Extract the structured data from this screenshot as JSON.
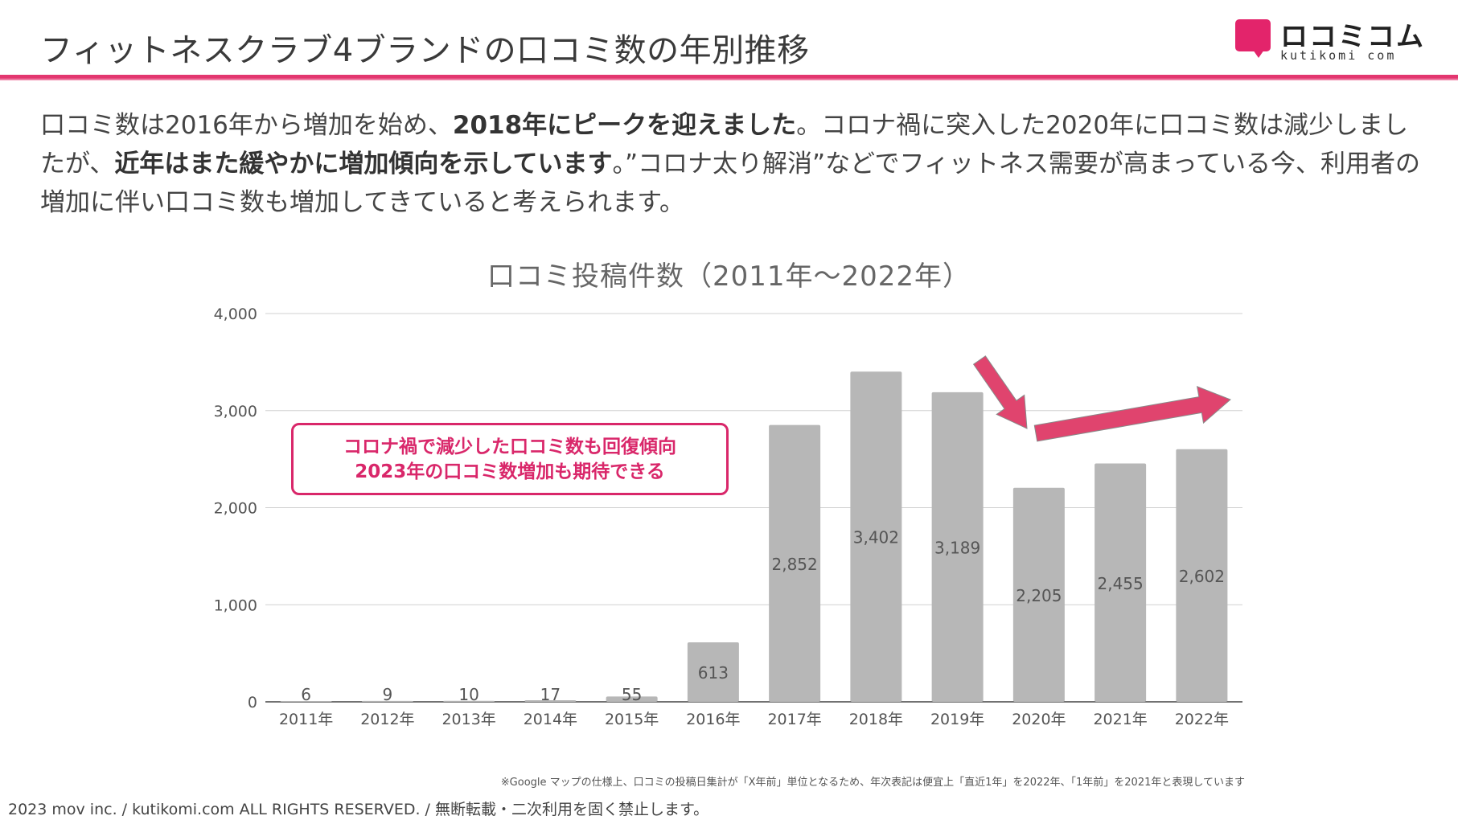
{
  "header": {
    "title": "フィットネスクラブ4ブランドの口コミ数の年別推移",
    "accent_color": "#e3366f"
  },
  "logo": {
    "name_jp": "ロコミコム",
    "name_en": "kutikomi com",
    "mark_color": "#e3246b"
  },
  "summary": {
    "p1": "口コミ数は2016年から増加を始め、",
    "b1": "2018年にピークを迎えました",
    "p2": "。コロナ禍に突入した2020年に口コミ数は減少しましたが、",
    "b2": "近年はまた緩やかに増加傾向を示しています",
    "p3": "。”コロナ太り解消”などでフィットネス需要が高まっている今、利用者の増加に伴い口コミ数も増加してきていると考えられます。"
  },
  "callout": {
    "line1": "コロナ禍で減少した口コミ数も回復傾向",
    "line2": "2023年の口コミ数増加も期待できる",
    "color": "#d9276a"
  },
  "chart_data": {
    "type": "bar",
    "title": "口コミ投稿件数（2011年〜2022年）",
    "categories": [
      "2011年",
      "2012年",
      "2013年",
      "2014年",
      "2015年",
      "2016年",
      "2017年",
      "2018年",
      "2019年",
      "2020年",
      "2021年",
      "2022年"
    ],
    "values": [
      6,
      9,
      10,
      17,
      55,
      613,
      2852,
      3402,
      3189,
      2205,
      2455,
      2602
    ],
    "value_labels": [
      "6",
      "9",
      "10",
      "17",
      "55",
      "613",
      "2,852",
      "3,402",
      "3,189",
      "2,205",
      "2,455",
      "2,602"
    ],
    "ylim": [
      0,
      4000
    ],
    "yticks": [
      0,
      1000,
      2000,
      3000,
      4000
    ],
    "ytick_labels": [
      "0",
      "1,000",
      "2,000",
      "3,000",
      "4,000"
    ],
    "xlabel": "",
    "ylabel": "",
    "grid": true,
    "bar_color": "#b7b7b7",
    "arrow_color": "#e0446e"
  },
  "note": "※Google マップの仕様上、口コミの投稿日集計が「X年前」単位となるため、年次表記は便宜上「直近1年」を2022年、「1年前」を2021年と表現しています",
  "footer": "2023 mov inc. / kutikomi.com ALL RIGHTS RESERVED. / 無断転載・二次利用を固く禁止します。"
}
